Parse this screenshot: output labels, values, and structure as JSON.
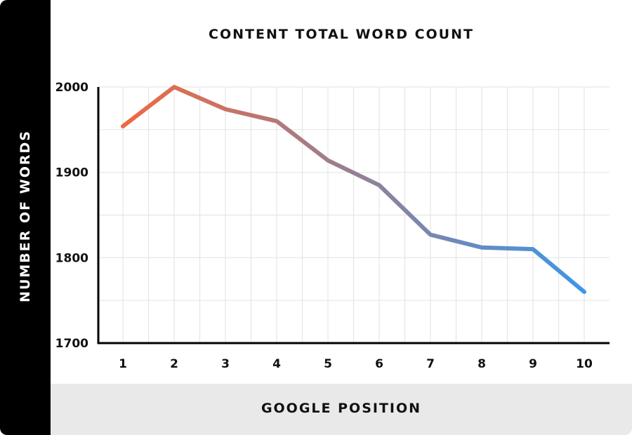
{
  "chart_data": {
    "type": "line",
    "title": "CONTENT TOTAL WORD COUNT",
    "xlabel": "GOOGLE POSITION",
    "ylabel": "NUMBER OF WORDS",
    "categories": [
      "1",
      "2",
      "3",
      "4",
      "5",
      "6",
      "7",
      "8",
      "9",
      "10"
    ],
    "values": [
      1954,
      2000,
      1974,
      1960,
      1914,
      1885,
      1827,
      1812,
      1810,
      1760
    ],
    "ylim": [
      1700,
      2000
    ],
    "yticks": [
      "1700",
      "1800",
      "1900",
      "2000"
    ],
    "grid": true,
    "line_gradient": [
      "#ee6a40",
      "#3d96e8"
    ]
  }
}
